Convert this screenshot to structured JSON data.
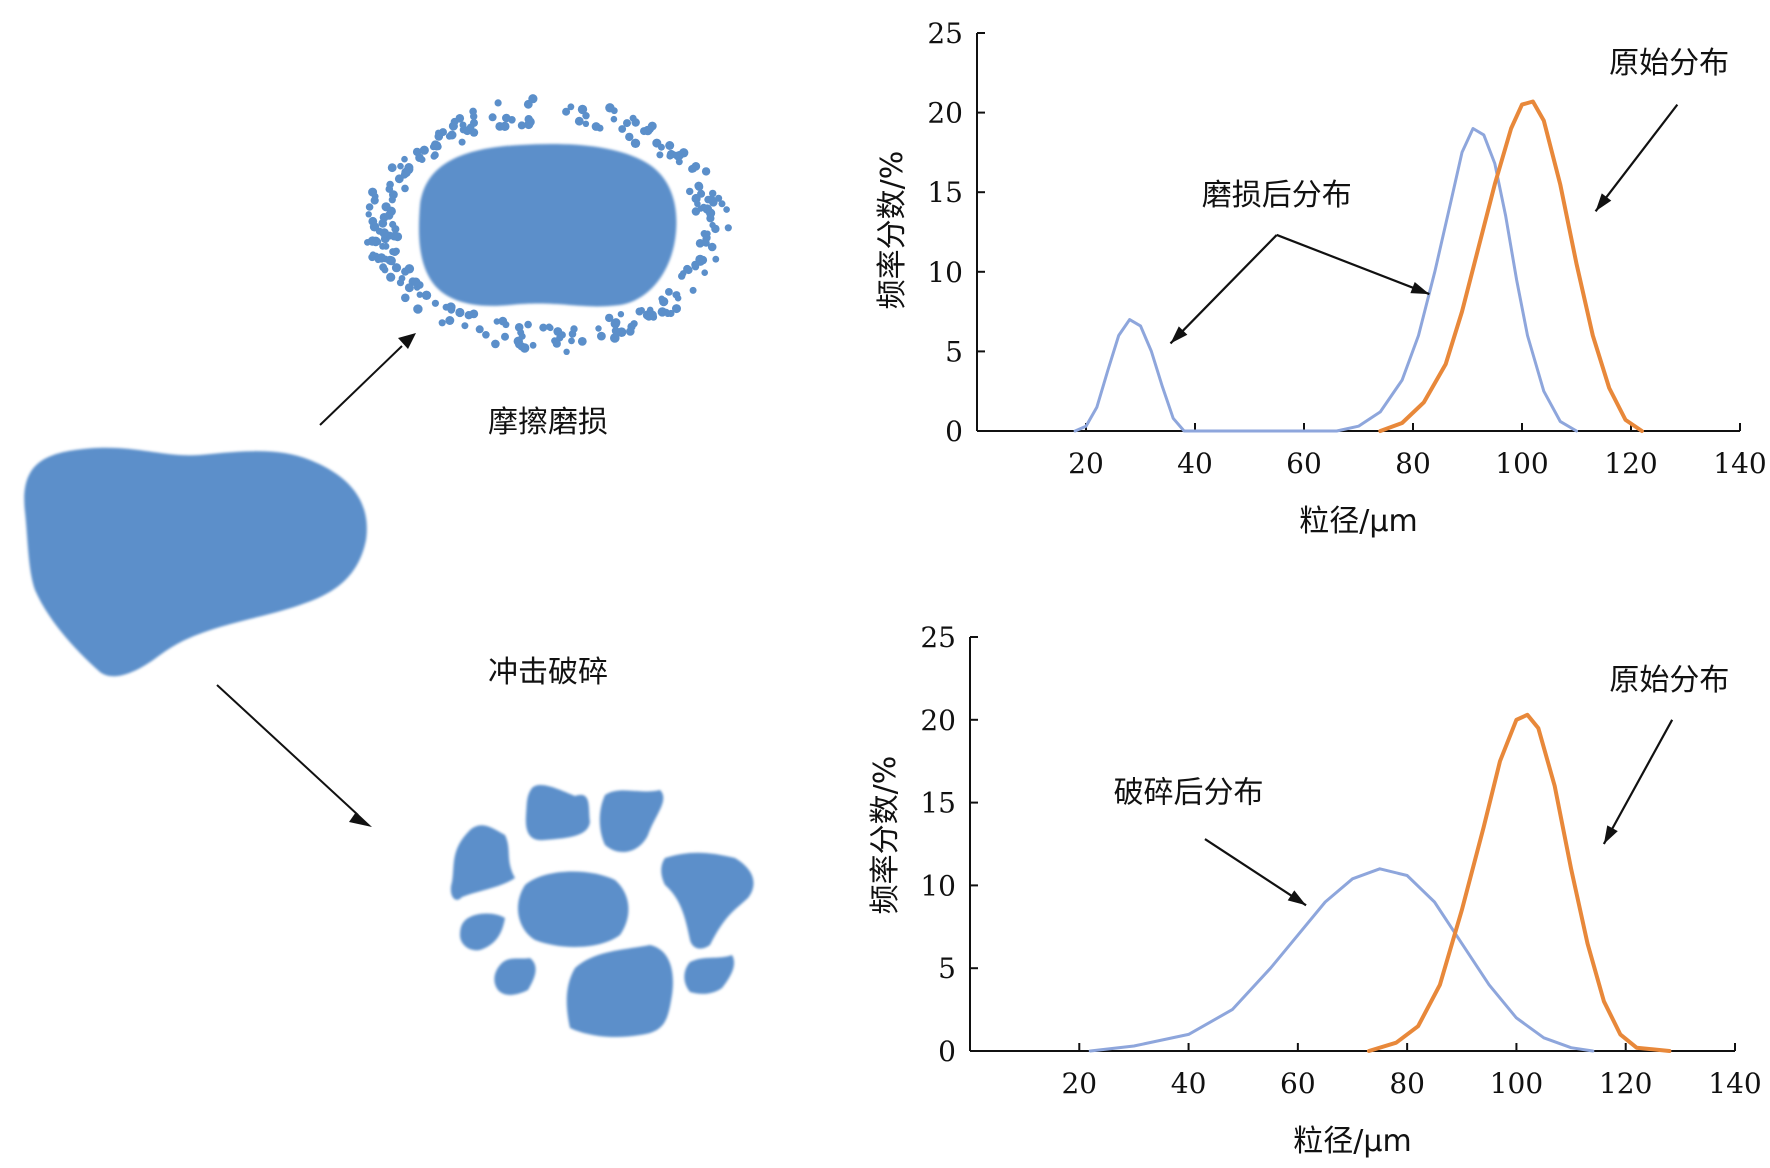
{
  "labels": {
    "abrasion": "摩擦磨损",
    "impact": "冲击破碎"
  },
  "colors": {
    "particle": "#5b8fca",
    "original_curve": "#e8883a",
    "after_curve": "#8ea6dc",
    "axis": "#111111"
  },
  "chart_data": [
    {
      "type": "line",
      "xlabel": "粒径/μm",
      "ylabel": "频率分数/%",
      "xlim": [
        0,
        140
      ],
      "ylim": [
        0,
        25
      ],
      "xticks": [
        20,
        40,
        60,
        80,
        100,
        120,
        140
      ],
      "yticks": [
        0,
        5,
        10,
        15,
        20,
        25
      ],
      "series": [
        {
          "name": "磨损后分布",
          "color": "#8ea6dc",
          "points": [
            [
              18,
              0
            ],
            [
              20,
              0.3
            ],
            [
              22,
              1.5
            ],
            [
              24,
              3.8
            ],
            [
              26,
              6.0
            ],
            [
              28,
              7.0
            ],
            [
              30,
              6.6
            ],
            [
              32,
              5.0
            ],
            [
              34,
              2.8
            ],
            [
              36,
              0.8
            ],
            [
              38,
              0
            ],
            [
              66,
              0
            ],
            [
              70,
              0.3
            ],
            [
              74,
              1.2
            ],
            [
              78,
              3.2
            ],
            [
              81,
              6.0
            ],
            [
              84,
              10.0
            ],
            [
              87,
              14.5
            ],
            [
              89,
              17.5
            ],
            [
              91,
              19.0
            ],
            [
              93,
              18.6
            ],
            [
              95,
              16.8
            ],
            [
              97,
              13.5
            ],
            [
              99,
              9.5
            ],
            [
              101,
              6.0
            ],
            [
              104,
              2.5
            ],
            [
              107,
              0.6
            ],
            [
              110,
              0
            ]
          ]
        },
        {
          "name": "原始分布",
          "color": "#e8883a",
          "points": [
            [
              74,
              0
            ],
            [
              78,
              0.5
            ],
            [
              82,
              1.8
            ],
            [
              86,
              4.2
            ],
            [
              89,
              7.5
            ],
            [
              92,
              11.5
            ],
            [
              95,
              15.5
            ],
            [
              98,
              19.0
            ],
            [
              100,
              20.5
            ],
            [
              102,
              20.7
            ],
            [
              104,
              19.5
            ],
            [
              107,
              15.5
            ],
            [
              110,
              10.5
            ],
            [
              113,
              6.0
            ],
            [
              116,
              2.7
            ],
            [
              119,
              0.7
            ],
            [
              122,
              0
            ]
          ]
        }
      ],
      "annotations": [
        {
          "text": "磨损后分布",
          "x": 55,
          "y": 14.2
        },
        {
          "text": "原始分布",
          "x": 127,
          "y": 22.5
        }
      ]
    },
    {
      "type": "line",
      "xlabel": "粒径/μm",
      "ylabel": "频率分数/%",
      "xlim": [
        0,
        140
      ],
      "ylim": [
        0,
        25
      ],
      "xticks": [
        20,
        40,
        60,
        80,
        100,
        120,
        140
      ],
      "yticks": [
        0,
        5,
        10,
        15,
        20,
        25
      ],
      "series": [
        {
          "name": "破碎后分布",
          "color": "#8ea6dc",
          "points": [
            [
              22,
              0
            ],
            [
              30,
              0.3
            ],
            [
              40,
              1.0
            ],
            [
              48,
              2.5
            ],
            [
              55,
              5.0
            ],
            [
              60,
              7.0
            ],
            [
              65,
              9.0
            ],
            [
              70,
              10.4
            ],
            [
              75,
              11.0
            ],
            [
              80,
              10.6
            ],
            [
              85,
              9.0
            ],
            [
              90,
              6.5
            ],
            [
              95,
              4.0
            ],
            [
              100,
              2.0
            ],
            [
              105,
              0.8
            ],
            [
              110,
              0.2
            ],
            [
              114,
              0
            ]
          ]
        },
        {
          "name": "原始分布",
          "color": "#e8883a",
          "points": [
            [
              73,
              0
            ],
            [
              78,
              0.5
            ],
            [
              82,
              1.5
            ],
            [
              86,
              4.0
            ],
            [
              90,
              8.5
            ],
            [
              94,
              13.5
            ],
            [
              97,
              17.5
            ],
            [
              100,
              20.0
            ],
            [
              102,
              20.3
            ],
            [
              104,
              19.5
            ],
            [
              107,
              16.0
            ],
            [
              110,
              11.0
            ],
            [
              113,
              6.5
            ],
            [
              116,
              3.0
            ],
            [
              119,
              1.0
            ],
            [
              122,
              0.2
            ],
            [
              128,
              0
            ]
          ]
        }
      ],
      "annotations": [
        {
          "text": "破碎后分布",
          "x": 40,
          "y": 15
        },
        {
          "text": "原始分布",
          "x": 128,
          "y": 21.8
        }
      ]
    }
  ]
}
